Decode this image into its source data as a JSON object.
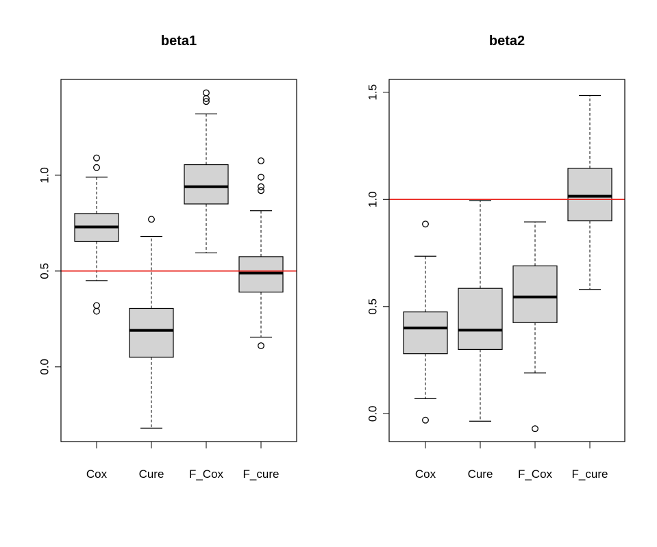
{
  "chart_data": [
    {
      "type": "boxplot",
      "title": "beta1",
      "xlabel": "",
      "ylabel": "",
      "ylim": [
        -0.39,
        1.5
      ],
      "yticks": [
        0.0,
        0.5,
        1.0
      ],
      "ytick_labels": [
        "0.0",
        "0.5",
        "1.0"
      ],
      "reference_line": {
        "y": 0.5,
        "color": "#e8201a"
      },
      "box_fill": "#d3d3d3",
      "categories": [
        "Cox",
        "Cure",
        "F_Cox",
        "F_cure"
      ],
      "boxes": [
        {
          "name": "Cox",
          "whisker_low": 0.45,
          "q1": 0.655,
          "median": 0.73,
          "q3": 0.8,
          "whisker_high": 0.99,
          "outliers": [
            1.09,
            1.04,
            0.32,
            0.29
          ]
        },
        {
          "name": "Cure",
          "whisker_low": -0.32,
          "q1": 0.05,
          "median": 0.19,
          "q3": 0.305,
          "whisker_high": 0.68,
          "outliers": [
            0.77
          ]
        },
        {
          "name": "F_Cox",
          "whisker_low": 0.595,
          "q1": 0.85,
          "median": 0.94,
          "q3": 1.055,
          "whisker_high": 1.32,
          "outliers": [
            1.43,
            1.4,
            1.385
          ]
        },
        {
          "name": "F_cure",
          "whisker_low": 0.155,
          "q1": 0.39,
          "median": 0.49,
          "q3": 0.575,
          "whisker_high": 0.815,
          "outliers": [
            1.075,
            0.99,
            0.94,
            0.92,
            0.11
          ]
        }
      ]
    },
    {
      "type": "boxplot",
      "title": "beta2",
      "xlabel": "",
      "ylabel": "",
      "ylim": [
        -0.13,
        1.56
      ],
      "yticks": [
        0.0,
        0.5,
        1.0,
        1.5
      ],
      "ytick_labels": [
        "0.0",
        "0.5",
        "1.0",
        "1.5"
      ],
      "reference_line": {
        "y": 1.0,
        "color": "#e8201a"
      },
      "box_fill": "#d3d3d3",
      "categories": [
        "Cox",
        "Cure",
        "F_Cox",
        "F_cure"
      ],
      "boxes": [
        {
          "name": "Cox",
          "whisker_low": 0.07,
          "q1": 0.28,
          "median": 0.4,
          "q3": 0.475,
          "whisker_high": 0.735,
          "outliers": [
            0.885,
            -0.03
          ]
        },
        {
          "name": "Cure",
          "whisker_low": -0.035,
          "q1": 0.3,
          "median": 0.39,
          "q3": 0.585,
          "whisker_high": 0.995,
          "outliers": []
        },
        {
          "name": "F_Cox",
          "whisker_low": 0.19,
          "q1": 0.425,
          "median": 0.545,
          "q3": 0.69,
          "whisker_high": 0.895,
          "outliers": [
            -0.07
          ]
        },
        {
          "name": "F_cure",
          "whisker_low": 0.58,
          "q1": 0.9,
          "median": 1.015,
          "q3": 1.145,
          "whisker_high": 1.485,
          "outliers": []
        }
      ]
    }
  ]
}
